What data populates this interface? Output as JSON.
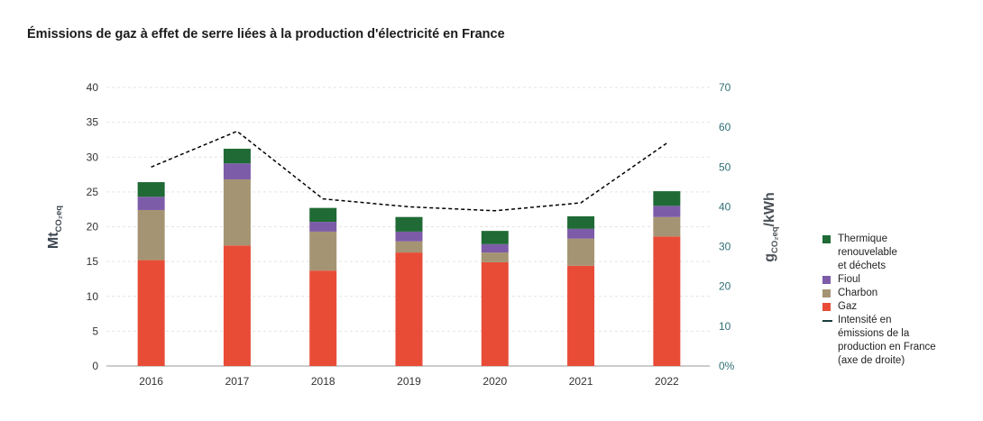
{
  "title": "Émissions de gaz à effet de serre liées à la production d'électricité en France",
  "colors": {
    "left_axis_title": "#3d4650",
    "right_axis_title": "#4b5157",
    "legend_line": "#1c3d40",
    "grid": "#e3e3e3",
    "baseline": "#9a9a9a"
  },
  "chart_data": {
    "type": "bar",
    "stacked": true,
    "categories": [
      "2016",
      "2017",
      "2018",
      "2019",
      "2020",
      "2021",
      "2022"
    ],
    "series": [
      {
        "name": "Gaz",
        "color": "#e84c37",
        "values": [
          15.2,
          17.3,
          13.7,
          16.3,
          14.9,
          14.4,
          18.6
        ]
      },
      {
        "name": "Charbon",
        "color": "#a59473",
        "values": [
          7.2,
          9.5,
          5.6,
          1.6,
          1.4,
          3.9,
          2.8
        ]
      },
      {
        "name": "Fioul",
        "color": "#7c5ca8",
        "values": [
          1.9,
          2.3,
          1.4,
          1.4,
          1.2,
          1.4,
          1.6
        ]
      },
      {
        "name": "Thermique\nrenouvelable\net déchets",
        "color": "#1f6a35",
        "values": [
          2.1,
          2.1,
          2.0,
          2.1,
          1.9,
          1.8,
          2.1
        ]
      }
    ],
    "line_series": {
      "name": "Intensité en\némissions de la\nproduction en France\n(axe de droite)",
      "type": "line",
      "axis": "right",
      "color": "#000000",
      "values": [
        50,
        59,
        42,
        40,
        39,
        41,
        56
      ]
    },
    "ylabel": "Mt",
    "ylabel_subscript": "CO₂eq",
    "ylim": [
      0,
      40
    ],
    "yticks": [
      0,
      5,
      10,
      15,
      20,
      25,
      30,
      35,
      40
    ],
    "y2label": "g",
    "y2label_subscript": "CO₂eq",
    "y2label_suffix": "/kWh",
    "y2lim": [
      0,
      70
    ],
    "y2ticks": [
      "0%",
      "10",
      "20",
      "30",
      "40",
      "50",
      "60",
      "70"
    ],
    "grid": true,
    "legend_position": "right"
  }
}
